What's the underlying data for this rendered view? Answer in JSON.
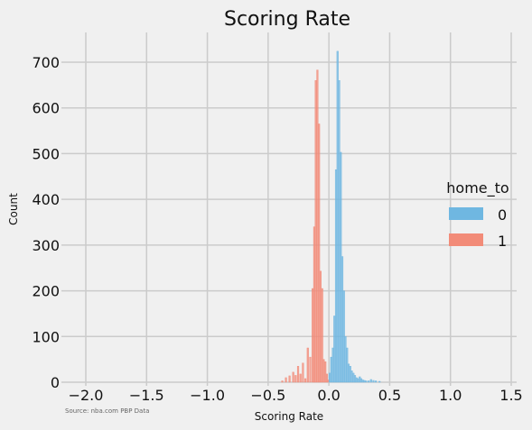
{
  "chart_data": {
    "type": "histogram",
    "title": "Scoring Rate",
    "xlabel": "Scoring Rate",
    "ylabel": "Count",
    "source_note": "Source: nba.com PBP Data",
    "xlim": [
      -2.1,
      1.55
    ],
    "ylim": [
      0,
      760
    ],
    "xticks": [
      -2.0,
      -1.5,
      -1.0,
      -0.5,
      0.0,
      0.5,
      1.0,
      1.5
    ],
    "xtick_labels": [
      "−2.0",
      "−1.5",
      "−1.0",
      "−0.5",
      "0.0",
      "0.5",
      "1.0",
      "1.5"
    ],
    "yticks": [
      0,
      100,
      200,
      300,
      400,
      500,
      600,
      700
    ],
    "ytick_labels": [
      "0",
      "100",
      "200",
      "300",
      "400",
      "500",
      "600",
      "700"
    ],
    "grid": true,
    "legend": {
      "title": "home_to",
      "placement": "right",
      "entries": [
        "0",
        "1"
      ]
    },
    "bin_width": 0.013,
    "series": [
      {
        "name": "1",
        "color": "#f28b78",
        "bins": [
          {
            "x": -0.39,
            "count": 3
          },
          {
            "x": -0.36,
            "count": 10
          },
          {
            "x": -0.33,
            "count": 14
          },
          {
            "x": -0.3,
            "count": 22
          },
          {
            "x": -0.28,
            "count": 15
          },
          {
            "x": -0.26,
            "count": 35
          },
          {
            "x": -0.24,
            "count": 18
          },
          {
            "x": -0.22,
            "count": 42
          },
          {
            "x": -0.2,
            "count": 8
          },
          {
            "x": -0.18,
            "count": 75
          },
          {
            "x": -0.16,
            "count": 55
          },
          {
            "x": -0.14,
            "count": 205
          },
          {
            "x": -0.127,
            "count": 340
          },
          {
            "x": -0.114,
            "count": 660
          },
          {
            "x": -0.101,
            "count": 683
          },
          {
            "x": -0.088,
            "count": 565
          },
          {
            "x": -0.075,
            "count": 243
          },
          {
            "x": -0.062,
            "count": 205
          },
          {
            "x": -0.049,
            "count": 50
          },
          {
            "x": -0.036,
            "count": 45
          },
          {
            "x": -0.023,
            "count": 18
          },
          {
            "x": -0.01,
            "count": 5
          }
        ]
      },
      {
        "name": "0",
        "color": "#6fb7e1",
        "bins": [
          {
            "x": 0.0,
            "count": 20
          },
          {
            "x": 0.013,
            "count": 55
          },
          {
            "x": 0.026,
            "count": 75
          },
          {
            "x": 0.039,
            "count": 145
          },
          {
            "x": 0.052,
            "count": 465
          },
          {
            "x": 0.065,
            "count": 724
          },
          {
            "x": 0.078,
            "count": 660
          },
          {
            "x": 0.091,
            "count": 503
          },
          {
            "x": 0.104,
            "count": 275
          },
          {
            "x": 0.117,
            "count": 200
          },
          {
            "x": 0.13,
            "count": 100
          },
          {
            "x": 0.143,
            "count": 75
          },
          {
            "x": 0.156,
            "count": 40
          },
          {
            "x": 0.169,
            "count": 35
          },
          {
            "x": 0.182,
            "count": 25
          },
          {
            "x": 0.195,
            "count": 20
          },
          {
            "x": 0.208,
            "count": 15
          },
          {
            "x": 0.221,
            "count": 10
          },
          {
            "x": 0.234,
            "count": 8
          },
          {
            "x": 0.247,
            "count": 12
          },
          {
            "x": 0.26,
            "count": 8
          },
          {
            "x": 0.273,
            "count": 5
          },
          {
            "x": 0.286,
            "count": 4
          },
          {
            "x": 0.3,
            "count": 3
          },
          {
            "x": 0.32,
            "count": 3
          },
          {
            "x": 0.34,
            "count": 6
          },
          {
            "x": 0.36,
            "count": 4
          },
          {
            "x": 0.38,
            "count": 3
          },
          {
            "x": 0.41,
            "count": 2
          }
        ]
      }
    ]
  }
}
